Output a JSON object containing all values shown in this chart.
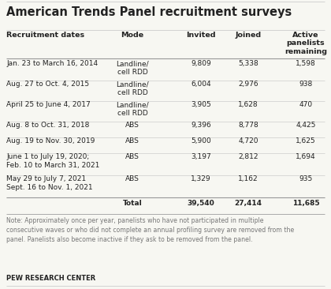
{
  "title": "American Trends Panel recruitment surveys",
  "col_headers": [
    "Recruitment dates",
    "Mode",
    "Invited",
    "Joined",
    "Active\npanelists\nremaining"
  ],
  "rows": [
    {
      "date": "Jan. 23 to March 16, 2014",
      "date2": "",
      "mode": "Landline/\ncell RDD",
      "invited": "9,809",
      "joined": "5,338",
      "active": "1,598"
    },
    {
      "date": "Aug. 27 to Oct. 4, 2015",
      "date2": "",
      "mode": "Landline/\ncell RDD",
      "invited": "6,004",
      "joined": "2,976",
      "active": "938"
    },
    {
      "date": "April 25 to June 4, 2017",
      "date2": "",
      "mode": "Landline/\ncell RDD",
      "invited": "3,905",
      "joined": "1,628",
      "active": "470"
    },
    {
      "date": "Aug. 8 to Oct. 31, 2018",
      "date2": "",
      "mode": "ABS",
      "invited": "9,396",
      "joined": "8,778",
      "active": "4,425"
    },
    {
      "date": "Aug. 19 to Nov. 30, 2019",
      "date2": "",
      "mode": "ABS",
      "invited": "5,900",
      "joined": "4,720",
      "active": "1,625"
    },
    {
      "date": "June 1 to July 19, 2020;",
      "date2": "Feb. 10 to March 31, 2021",
      "mode": "ABS",
      "invited": "3,197",
      "joined": "2,812",
      "active": "1,694"
    },
    {
      "date": "May 29 to July 7, 2021",
      "date2": "Sept. 16 to Nov. 1, 2021",
      "mode": "ABS",
      "invited": "1,329",
      "joined": "1,162",
      "active": "935"
    }
  ],
  "total": [
    "",
    "Total",
    "39,540",
    "27,414",
    "11,685"
  ],
  "note": "Note: Approximately once per year, panelists who have not participated in multiple\nconsecutive waves or who did not complete an annual profiling survey are removed from the\npanel. Panelists also become inactive if they ask to be removed from the panel.",
  "footer": "PEW RESEARCH CENTER",
  "bg_color": "#f7f7f2",
  "text_color": "#222222",
  "note_color": "#777777",
  "line_color": "#bbbbbb",
  "title_fontsize": 10.5,
  "header_fontsize": 6.8,
  "data_fontsize": 6.5,
  "note_fontsize": 5.6,
  "footer_fontsize": 6.0
}
